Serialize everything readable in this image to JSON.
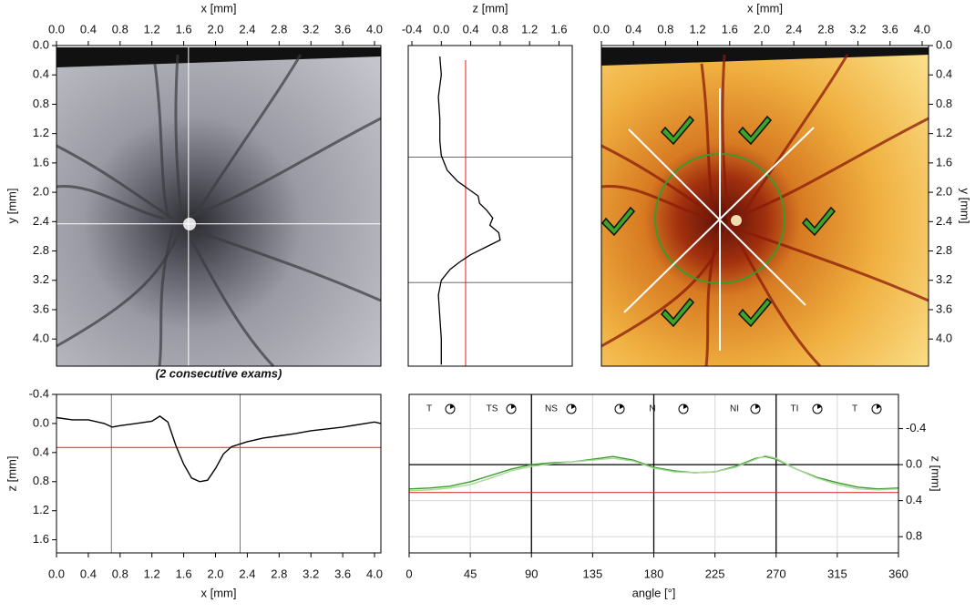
{
  "chart_data": [
    {
      "type": "image",
      "xlabel": "x [mm]",
      "ylabel": "y [mm]",
      "caption": "(2 consecutive exams)",
      "xlim": [
        0,
        4.08
      ],
      "xticks": [
        {
          "value": 0,
          "label": "0.0"
        },
        0.4,
        0.8,
        1.2,
        1.6,
        {
          "value": 2,
          "label": "2.0"
        },
        2.4,
        2.8,
        3.2,
        3.6,
        {
          "value": 4,
          "label": "4.0"
        }
      ],
      "ylim": [
        0,
        4.37
      ],
      "y_inverted": true,
      "yticks": [
        {
          "value": 0,
          "label": "0.0"
        },
        0.4,
        0.8,
        1.2,
        1.6,
        {
          "value": 2,
          "label": "2.0"
        },
        2.4,
        2.8,
        3.2,
        3.6,
        {
          "value": 4,
          "label": "4.0"
        }
      ],
      "crosshair": {
        "x": 1.66,
        "y": 2.43
      },
      "color": "#ffffff"
    },
    {
      "type": "profile",
      "xlabel": "z [mm]",
      "xlim": [
        -0.45,
        1.78
      ],
      "xticks": [
        -0.4,
        {
          "value": 0,
          "label": "0.0"
        },
        0.4,
        0.8,
        1.2,
        1.6
      ],
      "ylim": [
        0,
        4.37
      ],
      "y_inverted": true,
      "y": [
        0.15,
        0.4,
        0.7,
        1.0,
        1.3,
        1.5,
        1.7,
        1.85,
        1.95,
        2.05,
        2.15,
        2.25,
        2.35,
        2.45,
        2.55,
        2.65,
        2.75,
        2.85,
        2.95,
        3.05,
        3.2,
        3.4,
        3.7,
        4.0,
        4.35
      ],
      "values": [
        -0.02,
        0.0,
        -0.04,
        -0.02,
        -0.02,
        0.0,
        0.08,
        0.22,
        0.36,
        0.5,
        0.52,
        0.62,
        0.7,
        0.66,
        0.78,
        0.8,
        0.6,
        0.4,
        0.25,
        0.12,
        0.0,
        -0.04,
        -0.02,
        0.0,
        0.0
      ],
      "color": "#000000",
      "reference": 0.33,
      "reference_color": "#e02020",
      "bounds": [
        1.52,
        3.23
      ]
    },
    {
      "type": "image",
      "xlabel": "x [mm]",
      "ylabel": "y [mm]",
      "xlim": [
        0,
        4.08
      ],
      "xticks": [
        {
          "value": 0,
          "label": "0.0"
        },
        0.4,
        0.8,
        1.2,
        1.6,
        {
          "value": 2,
          "label": "2.0"
        },
        2.4,
        2.8,
        3.2,
        3.6,
        {
          "value": 4,
          "label": "4.0"
        }
      ],
      "ylim": [
        0,
        4.37
      ],
      "y_inverted": true,
      "yticks": [
        {
          "value": 0,
          "label": "0.0"
        },
        0.4,
        0.8,
        1.2,
        1.6,
        {
          "value": 2,
          "label": "2.0"
        },
        2.4,
        2.8,
        3.2,
        3.6,
        {
          "value": 4,
          "label": "4.0"
        }
      ]
    },
    {
      "type": "line",
      "xlabel": "x [mm]",
      "ylabel": "z [mm]",
      "xlim": [
        0,
        4.08
      ],
      "xticks": [
        {
          "value": 0,
          "label": "0.0"
        },
        0.4,
        0.8,
        1.2,
        1.6,
        {
          "value": 2,
          "label": "2.0"
        },
        2.4,
        2.8,
        3.2,
        3.6,
        {
          "value": 4,
          "label": "4.0"
        }
      ],
      "ylim": [
        -0.4,
        1.78
      ],
      "y_inverted": true,
      "yticks": [
        -0.4,
        {
          "value": 0,
          "label": "0.0"
        },
        0.4,
        0.8,
        1.2,
        1.6
      ],
      "x": [
        0,
        0.2,
        0.4,
        0.6,
        0.7,
        0.8,
        1.0,
        1.2,
        1.3,
        1.4,
        1.5,
        1.6,
        1.7,
        1.8,
        1.9,
        2.0,
        2.1,
        2.2,
        2.4,
        2.6,
        2.8,
        3.0,
        3.2,
        3.6,
        4.0,
        4.08
      ],
      "values": [
        -0.08,
        -0.05,
        -0.05,
        0.0,
        0.05,
        0.03,
        0.0,
        -0.03,
        -0.1,
        -0.02,
        0.3,
        0.56,
        0.75,
        0.8,
        0.78,
        0.62,
        0.42,
        0.32,
        0.25,
        0.2,
        0.17,
        0.14,
        0.1,
        0.05,
        -0.02,
        0.0
      ],
      "color": "#000000",
      "reference": 0.33,
      "reference_color": "#e02020",
      "bounds": [
        0.69,
        2.31
      ]
    },
    {
      "type": "line",
      "xlabel": "angle [°]",
      "y2label": "z [mm]",
      "xlim": [
        0,
        360
      ],
      "xticks": [
        0,
        45,
        90,
        135,
        180,
        225,
        270,
        315,
        360
      ],
      "y2lim": [
        -0.78,
        0.98
      ],
      "y_inverted": true,
      "y2ticks": [
        -0.4,
        {
          "value": 0,
          "label": "0.0"
        },
        0.4,
        0.8
      ],
      "grid": true,
      "x": [
        0,
        15,
        30,
        45,
        60,
        75,
        90,
        105,
        120,
        135,
        150,
        165,
        180,
        195,
        210,
        225,
        240,
        255,
        262,
        270,
        285,
        300,
        315,
        330,
        345,
        360
      ],
      "series": [
        {
          "color": "#3a9a2a",
          "axis": "y2",
          "values": [
            0.27,
            0.26,
            0.24,
            0.19,
            0.12,
            0.05,
            0.0,
            -0.02,
            -0.03,
            -0.06,
            -0.09,
            -0.05,
            0.03,
            0.07,
            0.09,
            0.08,
            0.02,
            -0.07,
            -0.09,
            -0.06,
            0.05,
            0.14,
            0.2,
            0.25,
            0.27,
            0.26
          ]
        },
        {
          "color": "#a8d89a",
          "axis": "y2",
          "values": [
            0.29,
            0.28,
            0.26,
            0.22,
            0.15,
            0.07,
            0.02,
            -0.01,
            -0.03,
            -0.05,
            -0.07,
            -0.04,
            0.04,
            0.08,
            0.09,
            0.08,
            0.03,
            -0.06,
            -0.1,
            -0.07,
            0.05,
            0.15,
            0.22,
            0.27,
            0.28,
            0.27
          ]
        }
      ],
      "reference": 0.31,
      "reference_color": "#e02020",
      "baseline": 0,
      "sector_bounds": [
        90,
        180,
        270
      ],
      "sectors": [
        "T",
        "TS",
        "NS",
        "N",
        "NI",
        "TI",
        "T"
      ]
    }
  ]
}
